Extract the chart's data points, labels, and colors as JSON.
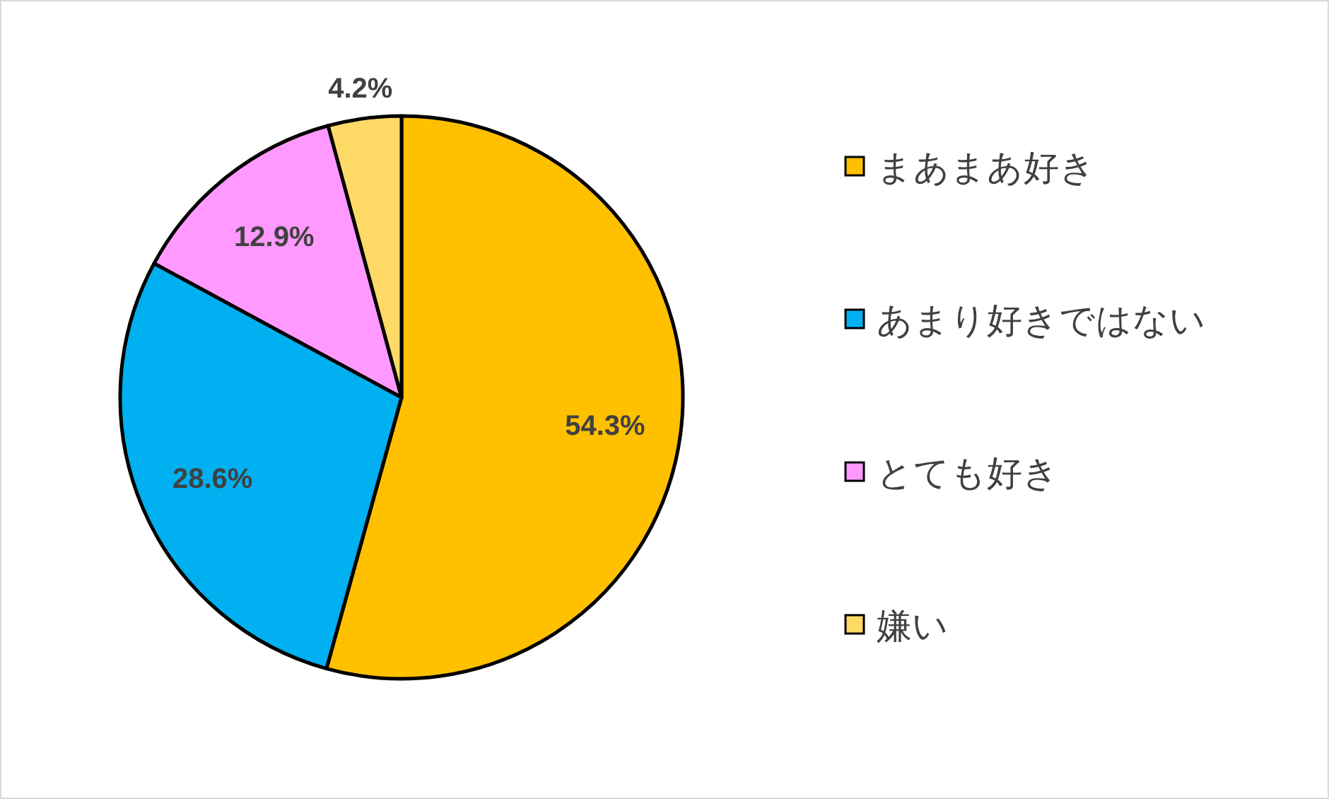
{
  "chart_data": {
    "type": "pie",
    "categories": [
      "まあまあ好き",
      "あまり好きではない",
      "とても好き",
      "嫌い"
    ],
    "values": [
      54.3,
      28.6,
      12.9,
      4.2
    ],
    "colors": [
      "#ffc000",
      "#00b0f0",
      "#ff99ff",
      "#ffd966"
    ],
    "value_labels": [
      "54.3%",
      "28.6%",
      "12.9%",
      "4.2%"
    ],
    "legend": "right"
  }
}
